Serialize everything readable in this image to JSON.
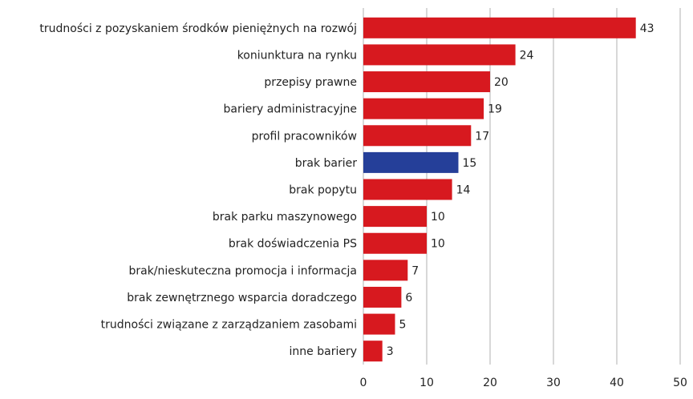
{
  "chart_data": {
    "type": "barh",
    "categories": [
      "trudności z pozyskaniem środków pieniężnych na rozwój",
      "koniunktura na rynku",
      "przepisy prawne",
      "bariery administracyjne",
      "profil pracowników",
      "brak barier",
      "brak popytu",
      "brak parku maszynowego",
      "brak doświadczenia PS",
      "brak/nieskuteczna promocja i informacja",
      "brak zewnętrznego wsparcia doradczego",
      "trudności związane z zarządzaniem zasobami",
      "inne bariery"
    ],
    "values": [
      43,
      24,
      20,
      19,
      17,
      15,
      14,
      10,
      10,
      7,
      6,
      5,
      3
    ],
    "colors": [
      "#d7191f",
      "#d7191f",
      "#d7191f",
      "#d7191f",
      "#d7191f",
      "#253f99",
      "#d7191f",
      "#d7191f",
      "#d7191f",
      "#d7191f",
      "#d7191f",
      "#d7191f",
      "#d7191f"
    ],
    "xlim": [
      0,
      50
    ],
    "xticks": [
      0,
      10,
      20,
      30,
      40,
      50
    ],
    "grid": true
  }
}
